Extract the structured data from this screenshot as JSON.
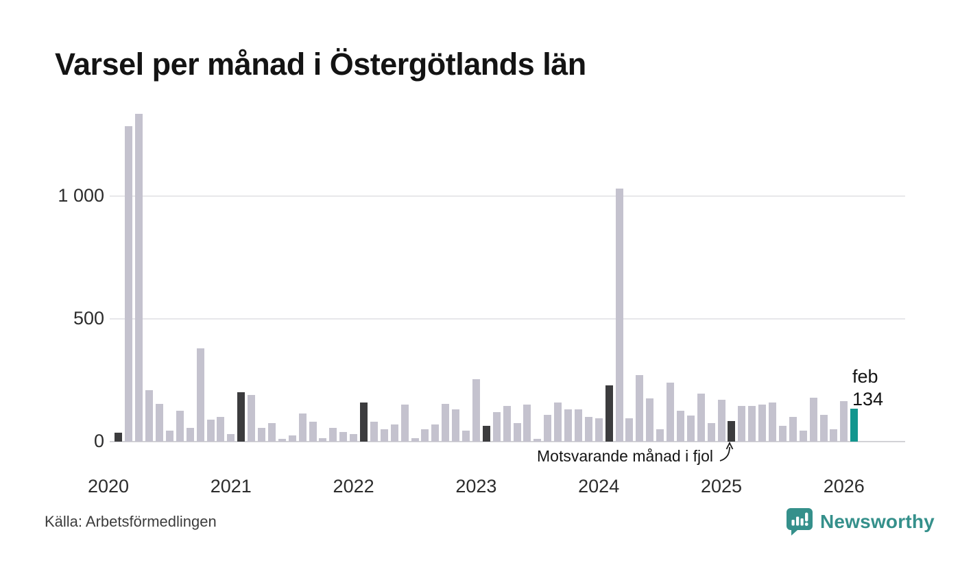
{
  "title": "Varsel per månad i Östergötlands län",
  "source": "Källa: Arbetsförmedlingen",
  "branding": {
    "name": "Newsworthy"
  },
  "colors": {
    "bar": "#c4c2ce",
    "prior_feb_bar": "#3c3c3e",
    "current_bar": "#12968e",
    "brand_teal": "#35908b",
    "gridline": "#e7e7ea",
    "baseline": "#d2d2d6",
    "text": "#2c2c2c"
  },
  "chart_data": {
    "type": "bar",
    "title": "Varsel per månad i Östergötlands län",
    "xlabel": "",
    "ylabel": "",
    "ylim": [
      0,
      1380
    ],
    "grid": "horizontal",
    "yticks": [
      {
        "value": 0,
        "label": "0"
      },
      {
        "value": 500,
        "label": "500"
      },
      {
        "value": 1000,
        "label": "1 000"
      }
    ],
    "year_ticks": [
      {
        "label": "2020",
        "month": "2020-01"
      },
      {
        "label": "2021",
        "month": "2021-01"
      },
      {
        "label": "2022",
        "month": "2022-01"
      },
      {
        "label": "2023",
        "month": "2023-01"
      },
      {
        "label": "2024",
        "month": "2024-01"
      },
      {
        "label": "2025",
        "month": "2025-01"
      },
      {
        "label": "2026",
        "month": "2026-01"
      }
    ],
    "annotation": {
      "text": "Motsvarande månad i fjol",
      "target_month": "2025-02"
    },
    "current_label": {
      "line1": "feb",
      "line2": "134"
    },
    "months": [
      {
        "m": "2020-02",
        "v": 35,
        "t": "prior_feb"
      },
      {
        "m": "2020-03",
        "v": 1285,
        "t": "normal"
      },
      {
        "m": "2020-04",
        "v": 1335,
        "t": "normal"
      },
      {
        "m": "2020-05",
        "v": 210,
        "t": "normal"
      },
      {
        "m": "2020-06",
        "v": 155,
        "t": "normal"
      },
      {
        "m": "2020-07",
        "v": 45,
        "t": "normal"
      },
      {
        "m": "2020-08",
        "v": 125,
        "t": "normal"
      },
      {
        "m": "2020-09",
        "v": 55,
        "t": "normal"
      },
      {
        "m": "2020-10",
        "v": 380,
        "t": "normal"
      },
      {
        "m": "2020-11",
        "v": 90,
        "t": "normal"
      },
      {
        "m": "2020-12",
        "v": 100,
        "t": "normal"
      },
      {
        "m": "2021-01",
        "v": 30,
        "t": "normal"
      },
      {
        "m": "2021-02",
        "v": 200,
        "t": "prior_feb"
      },
      {
        "m": "2021-03",
        "v": 190,
        "t": "normal"
      },
      {
        "m": "2021-04",
        "v": 55,
        "t": "normal"
      },
      {
        "m": "2021-05",
        "v": 75,
        "t": "normal"
      },
      {
        "m": "2021-06",
        "v": 10,
        "t": "normal"
      },
      {
        "m": "2021-07",
        "v": 25,
        "t": "normal"
      },
      {
        "m": "2021-08",
        "v": 115,
        "t": "normal"
      },
      {
        "m": "2021-09",
        "v": 80,
        "t": "normal"
      },
      {
        "m": "2021-10",
        "v": 15,
        "t": "normal"
      },
      {
        "m": "2021-11",
        "v": 55,
        "t": "normal"
      },
      {
        "m": "2021-12",
        "v": 40,
        "t": "normal"
      },
      {
        "m": "2022-01",
        "v": 30,
        "t": "normal"
      },
      {
        "m": "2022-02",
        "v": 160,
        "t": "prior_feb"
      },
      {
        "m": "2022-03",
        "v": 80,
        "t": "normal"
      },
      {
        "m": "2022-04",
        "v": 50,
        "t": "normal"
      },
      {
        "m": "2022-05",
        "v": 70,
        "t": "normal"
      },
      {
        "m": "2022-06",
        "v": 150,
        "t": "normal"
      },
      {
        "m": "2022-07",
        "v": 15,
        "t": "normal"
      },
      {
        "m": "2022-08",
        "v": 50,
        "t": "normal"
      },
      {
        "m": "2022-09",
        "v": 70,
        "t": "normal"
      },
      {
        "m": "2022-10",
        "v": 155,
        "t": "normal"
      },
      {
        "m": "2022-11",
        "v": 130,
        "t": "normal"
      },
      {
        "m": "2022-12",
        "v": 45,
        "t": "normal"
      },
      {
        "m": "2023-01",
        "v": 255,
        "t": "normal"
      },
      {
        "m": "2023-02",
        "v": 65,
        "t": "prior_feb"
      },
      {
        "m": "2023-03",
        "v": 120,
        "t": "normal"
      },
      {
        "m": "2023-04",
        "v": 145,
        "t": "normal"
      },
      {
        "m": "2023-05",
        "v": 75,
        "t": "normal"
      },
      {
        "m": "2023-06",
        "v": 150,
        "t": "normal"
      },
      {
        "m": "2023-07",
        "v": 10,
        "t": "normal"
      },
      {
        "m": "2023-08",
        "v": 110,
        "t": "normal"
      },
      {
        "m": "2023-09",
        "v": 160,
        "t": "normal"
      },
      {
        "m": "2023-10",
        "v": 130,
        "t": "normal"
      },
      {
        "m": "2023-11",
        "v": 130,
        "t": "normal"
      },
      {
        "m": "2023-12",
        "v": 100,
        "t": "normal"
      },
      {
        "m": "2024-01",
        "v": 95,
        "t": "normal"
      },
      {
        "m": "2024-02",
        "v": 230,
        "t": "prior_feb"
      },
      {
        "m": "2024-03",
        "v": 1030,
        "t": "normal"
      },
      {
        "m": "2024-04",
        "v": 95,
        "t": "normal"
      },
      {
        "m": "2024-05",
        "v": 270,
        "t": "normal"
      },
      {
        "m": "2024-06",
        "v": 175,
        "t": "normal"
      },
      {
        "m": "2024-07",
        "v": 50,
        "t": "normal"
      },
      {
        "m": "2024-08",
        "v": 240,
        "t": "normal"
      },
      {
        "m": "2024-09",
        "v": 125,
        "t": "normal"
      },
      {
        "m": "2024-10",
        "v": 105,
        "t": "normal"
      },
      {
        "m": "2024-11",
        "v": 195,
        "t": "normal"
      },
      {
        "m": "2024-12",
        "v": 75,
        "t": "normal"
      },
      {
        "m": "2025-01",
        "v": 170,
        "t": "normal"
      },
      {
        "m": "2025-02",
        "v": 85,
        "t": "prior_feb"
      },
      {
        "m": "2025-03",
        "v": 145,
        "t": "normal"
      },
      {
        "m": "2025-04",
        "v": 145,
        "t": "normal"
      },
      {
        "m": "2025-05",
        "v": 150,
        "t": "normal"
      },
      {
        "m": "2025-06",
        "v": 160,
        "t": "normal"
      },
      {
        "m": "2025-07",
        "v": 65,
        "t": "normal"
      },
      {
        "m": "2025-08",
        "v": 100,
        "t": "normal"
      },
      {
        "m": "2025-09",
        "v": 45,
        "t": "normal"
      },
      {
        "m": "2025-10",
        "v": 180,
        "t": "normal"
      },
      {
        "m": "2025-11",
        "v": 110,
        "t": "normal"
      },
      {
        "m": "2025-12",
        "v": 50,
        "t": "normal"
      },
      {
        "m": "2026-01",
        "v": 165,
        "t": "normal"
      },
      {
        "m": "2026-02",
        "v": 134,
        "t": "current"
      }
    ]
  }
}
